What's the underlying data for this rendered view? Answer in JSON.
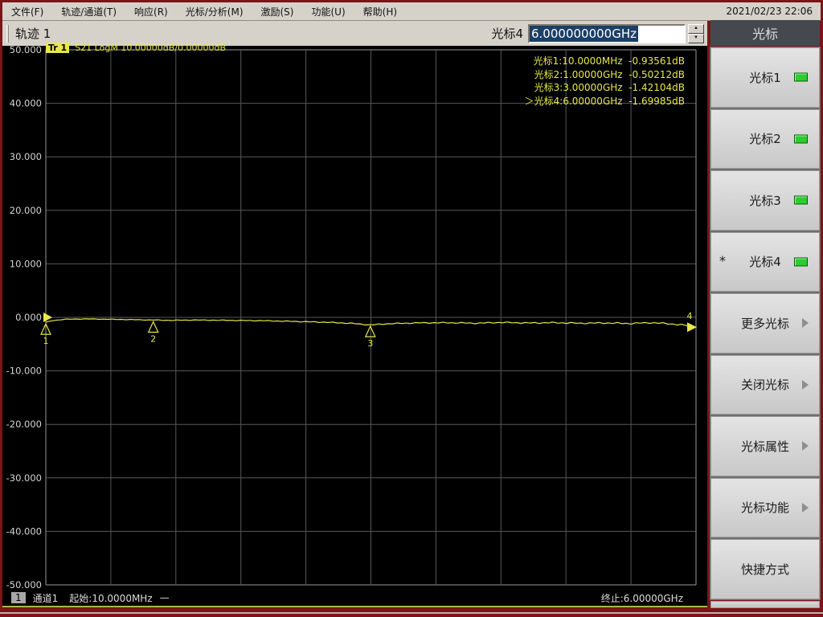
{
  "window": {
    "datetime": "2021/02/23 22:06"
  },
  "menu": {
    "items": [
      "文件(F)",
      "轨迹/通道(T)",
      "响应(R)",
      "光标/分析(M)",
      "激励(S)",
      "功能(U)",
      "帮助(H)"
    ]
  },
  "toolbar": {
    "trace_label": "轨迹 1",
    "marker_label": "光标4",
    "marker_value": "6.000000000GHz",
    "spin_up": "▲",
    "spin_down": "▼"
  },
  "sidebar": {
    "title": "光标",
    "buttons": [
      {
        "label": "光标1",
        "led": true,
        "star": false,
        "arrow": false
      },
      {
        "label": "光标2",
        "led": true,
        "star": false,
        "arrow": false
      },
      {
        "label": "光标3",
        "led": true,
        "star": false,
        "arrow": false
      },
      {
        "label": "光标4",
        "led": true,
        "star": true,
        "arrow": false
      },
      {
        "label": "更多光标",
        "led": false,
        "star": false,
        "arrow": true
      },
      {
        "label": "关闭光标",
        "led": false,
        "star": false,
        "arrow": true
      },
      {
        "label": "光标属性",
        "led": false,
        "star": false,
        "arrow": true
      },
      {
        "label": "光标功能",
        "led": false,
        "star": false,
        "arrow": true
      },
      {
        "label": "快捷方式",
        "led": false,
        "star": false,
        "arrow": false
      }
    ],
    "star_glyph": "*"
  },
  "chart_data": {
    "type": "line",
    "trace_badge": "Tr 1",
    "trace_info": "S21 LogM 10.00000dB/0.00000dB",
    "title": "S21 LogM trace, 10 dB/div, ref 0 dB",
    "xlabel": "frequency 10 MHz – 6 GHz (linear)",
    "ylabel": "dB",
    "x_start_hz": 10000000,
    "x_stop_hz": 6000000000,
    "ylim": [
      -50,
      50
    ],
    "y_ticks": [
      50,
      40,
      30,
      20,
      10,
      0,
      -10,
      -20,
      -30,
      -40,
      -50
    ],
    "y_tick_labels": [
      "50.000",
      "40.000",
      "30.000",
      "20.000",
      "10.000",
      "0.000",
      "-10.000",
      "-20.000",
      "-30.000",
      "-40.000",
      "-50.000"
    ],
    "x_divisions": 10,
    "db_per_div": 10,
    "ref_level_db": 0,
    "grid_on": true,
    "legend_position": "top-right readout list",
    "markers": [
      {
        "id": "1",
        "label": "光标1",
        "freq": "10.0000MHz",
        "value": "-0.93561dB",
        "freq_hz": 10000000,
        "db": -0.93561,
        "active": false
      },
      {
        "id": "2",
        "label": "光标2",
        "freq": "1.00000GHz",
        "value": "-0.50212dB",
        "freq_hz": 1000000000,
        "db": -0.50212,
        "active": false
      },
      {
        "id": "3",
        "label": "光标3",
        "freq": "3.00000GHz",
        "value": "-1.42104dB",
        "freq_hz": 3000000000,
        "db": -1.42104,
        "active": false
      },
      {
        "id": "4",
        "label": "光标4",
        "freq": "6.00000GHz",
        "value": "-1.69985dB",
        "freq_hz": 6000000000,
        "db": -1.69985,
        "active": true
      }
    ],
    "active_marker_prefix": "＞",
    "series": [
      {
        "name": "Tr1 S21 LogM",
        "x_fracs": [
          0,
          0.01,
          0.03,
          0.06,
          0.1,
          0.14,
          0.165,
          0.19,
          0.23,
          0.28,
          0.33,
          0.38,
          0.43,
          0.47,
          0.499,
          0.53,
          0.57,
          0.62,
          0.66,
          0.7,
          0.74,
          0.78,
          0.82,
          0.86,
          0.9,
          0.93,
          0.96,
          0.98,
          1.0
        ],
        "db": [
          -0.94,
          -0.62,
          -0.35,
          -0.3,
          -0.36,
          -0.45,
          -0.5,
          -0.56,
          -0.5,
          -0.56,
          -0.62,
          -0.76,
          -0.92,
          -1.12,
          -1.42,
          -1.18,
          -1.04,
          -1.0,
          -1.1,
          -0.95,
          -1.05,
          -1.0,
          -1.1,
          -1.05,
          -1.15,
          -1.0,
          -1.2,
          -1.45,
          -1.7
        ]
      }
    ],
    "colors": {
      "trace": "#e8e84a",
      "grid": "#585858",
      "plot_border": "#989898",
      "tick_label": "#d4d4d4",
      "background": "#000000"
    }
  },
  "status": {
    "channel_badge": "1",
    "channel": "通道1",
    "start": "起始:10.0000MHz",
    "dash": "—",
    "stop": "终止:6.00000GHz"
  }
}
